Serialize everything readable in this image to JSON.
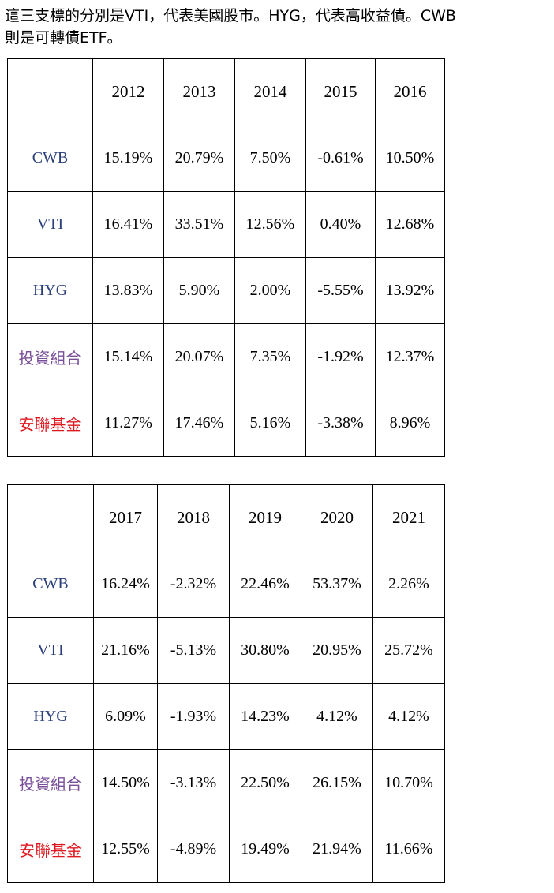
{
  "intro": {
    "line1": "這三支標的分別是VTI，代表美國股市。HYG，代表高收益債。CWB",
    "line2": "則是可轉債ETF。"
  },
  "colors": {
    "ticker_label": "#2b3f7a",
    "portfolio_label": "#7a4f9a",
    "fund_label": "#e0181f",
    "text": "#000000",
    "border": "#000000"
  },
  "tables": [
    {
      "years": [
        "2012",
        "2013",
        "2014",
        "2015",
        "2016"
      ],
      "rows": [
        {
          "label": "CWB",
          "values": [
            "15.19%",
            "20.79%",
            "7.50%",
            "-0.61%",
            "10.50%"
          ]
        },
        {
          "label": "VTI",
          "values": [
            "16.41%",
            "33.51%",
            "12.56%",
            "0.40%",
            "12.68%"
          ]
        },
        {
          "label": "HYG",
          "values": [
            "13.83%",
            "5.90%",
            "2.00%",
            "-5.55%",
            "13.92%"
          ]
        },
        {
          "label": "投資組合",
          "values": [
            "15.14%",
            "20.07%",
            "7.35%",
            "-1.92%",
            "12.37%"
          ]
        },
        {
          "label": "安聯基金",
          "values": [
            "11.27%",
            "17.46%",
            "5.16%",
            "-3.38%",
            "8.96%"
          ]
        }
      ]
    },
    {
      "years": [
        "2017",
        "2018",
        "2019",
        "2020",
        "2021"
      ],
      "rows": [
        {
          "label": "CWB",
          "values": [
            "16.24%",
            "-2.32%",
            "22.46%",
            "53.37%",
            "2.26%"
          ]
        },
        {
          "label": "VTI",
          "values": [
            "21.16%",
            "-5.13%",
            "30.80%",
            "20.95%",
            "25.72%"
          ]
        },
        {
          "label": "HYG",
          "values": [
            "6.09%",
            "-1.93%",
            "14.23%",
            "4.12%",
            "4.12%"
          ]
        },
        {
          "label": "投資組合",
          "values": [
            "14.50%",
            "-3.13%",
            "22.50%",
            "26.15%",
            "10.70%"
          ]
        },
        {
          "label": "安聯基金",
          "values": [
            "12.55%",
            "-4.89%",
            "19.49%",
            "21.94%",
            "11.66%"
          ]
        }
      ]
    }
  ]
}
